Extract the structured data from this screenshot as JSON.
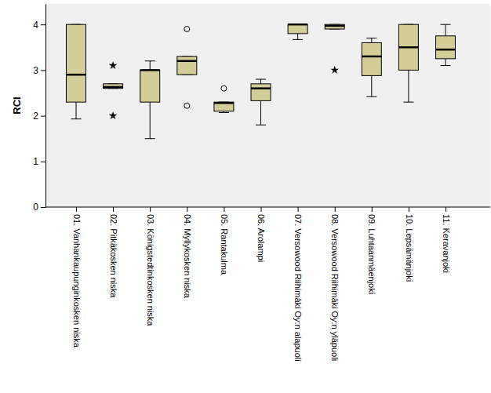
{
  "chart_data": {
    "type": "boxplot",
    "y_label": "RCI",
    "categories": [
      "01. Vanhankaupunginkosken niska",
      "02. Pitkäkosken niska",
      "03. Königstedtinkosken niska",
      "04. Myllykosken niska",
      "05. Rantakulma",
      "06. Arolampi",
      "07. Versowood Riihimäki Oy:n alapuoli",
      "08. Versowood Riihimäki Oy:n yläpuoli",
      "09. Luhtaanmäenjoki",
      "10. Lepsämänjoki",
      "11. Keravanjoki"
    ],
    "low": [
      1.93,
      2.6,
      1.5,
      2.9,
      2.07,
      1.8,
      3.67,
      3.9,
      2.42,
      2.3,
      3.1
    ],
    "q1": [
      2.3,
      2.6,
      2.3,
      2.9,
      2.1,
      2.33,
      3.8,
      3.9,
      2.88,
      3.0,
      3.25
    ],
    "median": [
      2.9,
      2.63,
      3.0,
      3.2,
      2.28,
      2.6,
      4.0,
      3.97,
      3.3,
      3.5,
      3.45
    ],
    "q3": [
      4.0,
      2.7,
      3.0,
      3.3,
      2.3,
      2.7,
      4.0,
      4.0,
      3.6,
      4.0,
      3.75
    ],
    "high": [
      4.0,
      2.7,
      3.2,
      3.3,
      2.3,
      2.8,
      4.0,
      4.0,
      3.7,
      4.0,
      4.0
    ],
    "outliers": [
      [],
      [],
      [],
      [
        3.9,
        2.22
      ],
      [
        2.6
      ],
      [],
      [],
      [],
      [],
      [],
      []
    ],
    "extremes": [
      [],
      [
        3.1,
        2.0
      ],
      [],
      [],
      [],
      [],
      [],
      [
        3.0
      ],
      [],
      [],
      []
    ],
    "color": "#d3ce97",
    "ylim": [
      0,
      4.45
    ],
    "yticks": [
      0,
      1,
      2,
      3,
      4
    ]
  }
}
